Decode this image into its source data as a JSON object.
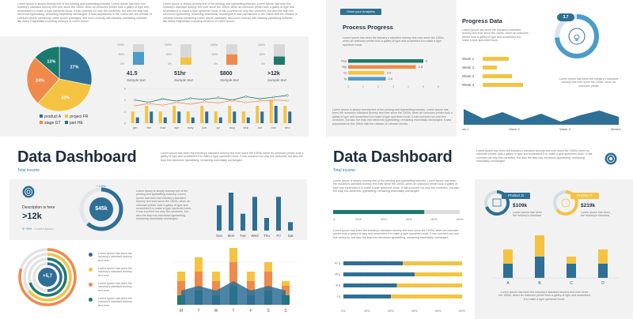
{
  "colors": {
    "navy": "#2e6f95",
    "teal": "#1b7a6e",
    "orange": "#f08a4b",
    "yellow": "#f5c342",
    "light_blue": "#4a9cc9",
    "grey_panel": "#f2f2f2"
  },
  "s1": {
    "para1": "Lorem Ipsum is simply dummy text of the printing and typesetting industry. Lorem Ipsum has been the industry's standard dummy text ever since the 1500s, when an unknown printer took a galley of type and scrambled it to make a type specimen book. It has survived not only five centuries, but also the leap into electronic typesetting, remaining essentially unchanged. It was popularised in the 1960s with the release of Letraset sheets containing Lorem Ipsum passages, and more recently with desktop publishing software like Aldus PageMaker including versions of Lorem Ipsum.",
    "para2": "Lorem Ipsum is simply dummy text of the printing and typesetting industry. Lorem Ipsum has been the industry's standard dummy text ever since the 1500s, when an unknown printer took a galley of type and scrambled it to make a type specimen book. It has survived not only five centuries, but also the leap into electronic typesetting, remaining essentially unchanged. It was popularised in the 1960s with the release of Letraset sheets containing Lorem Ipsum passages, and more recently with desktop publishing software like Aldus PageMaker including versions of Lorem Ipsum.",
    "pie": {
      "values": [
        27,
        32,
        24,
        13
      ],
      "labels": [
        "27%",
        "32%",
        "24%",
        "13%"
      ]
    },
    "legend": [
      "product A",
      "project FR",
      "stage GT",
      "part HE"
    ],
    "kpis": [
      {
        "value": "41.5",
        "label": "Sample text",
        "fill": 0.62
      },
      {
        "value": "51hr",
        "label": "Sample text",
        "fill": 0.35
      },
      {
        "value": "$800",
        "label": "Sample text",
        "fill": 0.5
      },
      {
        "value": ">12k",
        "label": "Sample text",
        "fill": 0.4
      }
    ],
    "kpi_axis": [
      "100%",
      "50%",
      "0%"
    ],
    "combo": {
      "months": [
        "jan",
        "feb",
        "mar",
        "apr",
        "may",
        "jun",
        "jul",
        "aug",
        "sep",
        "oct",
        "nov",
        "dec"
      ],
      "bars1": [
        2,
        3,
        2,
        3,
        2,
        3,
        2,
        3,
        2,
        3,
        4,
        3
      ],
      "bars2": [
        1,
        2,
        1,
        2,
        1,
        2,
        1,
        2,
        1,
        2,
        3,
        2
      ],
      "line1": [
        4,
        3.6,
        4.2,
        3.8,
        4.3,
        4.1,
        4.4,
        4,
        4.6,
        4.2,
        4.5,
        4.8
      ],
      "line2": [
        3,
        3.4,
        3.1,
        3.6,
        3.3,
        3.7,
        3.5,
        3.9,
        3.6,
        3.8,
        4,
        3.9
      ],
      "yticks": [
        "6",
        "4",
        "2",
        "0"
      ]
    }
  },
  "s2": {
    "button": "Show your Analytics",
    "title": "Process Progress",
    "para": "Lorem Ipsum has been the industry's standard dummy text ever since the 1500s, when an unknown printer took a galley of type and scrambled it to make a type specimen book.",
    "bars": [
      {
        "label": "Fey",
        "value": "5"
      },
      {
        "label": "Ely",
        "value": "4.5"
      },
      {
        "label": "Ty",
        "value": "2.4"
      },
      {
        "label": "Iy",
        "value": "2.5"
      }
    ],
    "axis": [
      "0",
      "1",
      "2",
      "3",
      "4",
      "5",
      "6"
    ],
    "bottom_para": "Lorem Ipsum is simply dummy text of the printing and typesetting industry. Lorem Ipsum has been the industry's standard dummy text ever since the 1500s, when an unknown printer took a galley of type and scrambled it to make a type specimen book. It has survived not only five centuries, but also the leap into electronic typesetting, remaining essentially unchanged. It was popularised in the 1960s with the release of Letraset sheets.",
    "right_title": "Progress Data",
    "right_para": "Lorem Ipsum has been the industry's standard dummy text ever since the 1500s, when an unknown printer took a galley of type and scrambled it to make a type specimen book.",
    "weeks": [
      {
        "label": "Week 1",
        "value": 0.55
      },
      {
        "label": "Week 2",
        "value": 0.3
      },
      {
        "label": "Week 3",
        "value": 0.62
      },
      {
        "label": "Week 4",
        "value": 0.85
      }
    ],
    "ring_value": "3.7",
    "ring_para": "Lorem Ipsum has been the industry's standard dummy text ever since the 1500s, when an unknown printer",
    "area_x": [
      "Week 1",
      "Week 2",
      "Week 3",
      "Week4"
    ]
  },
  "s3": {
    "title": "Data Dashboard",
    "subtitle": "Total income",
    "side_text": "Lorem Ipsum has been the industry's standard dummy text ever since the 1500s, when an unknown printer took a galley of type and scrambled it to make a type specimen book. It has survived not only five centuries, but also the leap into electronic typesetting, remaining essentially unchanged.",
    "desc_label": "Description is here",
    "desc_value": ">12k",
    "trend": "+5%",
    "trend_label": "Lorem ipsum",
    "ring_pct": "+ 4.5%",
    "ring_value": "$45k",
    "ring_para": "Lorem Ipsum is simply dummy text of the printing and typesetting industry. Lorem Ipsum has been the industry's standard dummy text ever since the 1500s, when an unknown printer took a galley of type and scrambled it to make a type specimen book. It has survived not only five centuries, but also the leap into electronic typesetting, remaining essentially unchanged.",
    "days": [
      "Sun",
      "Mon",
      "Tue",
      "Wed",
      "Thu",
      "Fri",
      "Sat"
    ],
    "day_values": [
      6,
      9,
      4,
      8,
      3,
      8,
      2
    ],
    "rings_center": "+5,7",
    "rings_items": [
      "Lorem Ipsum has been the industry's standard dummy text ever.",
      "Lorem Ipsum has been the industry's standard dummy text ever.",
      "Lorem Ipsum has been the industry's standard dummy text ever.",
      "Lorem Ipsum has been the industry's standard dummy text ever."
    ],
    "stack_x": [
      "M",
      "T",
      "W",
      "T",
      "F",
      "S",
      "S"
    ],
    "stack_teal": [
      2,
      3,
      2,
      4,
      2,
      3,
      2
    ],
    "stack_orange": [
      3,
      4,
      3,
      5,
      3,
      4,
      2
    ],
    "stack_yellow": [
      2,
      3,
      2,
      3,
      2,
      2,
      1
    ]
  },
  "s4": {
    "title": "Data Dashboard",
    "subtitle": "Total income",
    "side_text": "Lorem Ipsum has been the industry's standard dummy text ever since the 1500s, when an unknown printer took a galley of type and scrambled it to make a type specimen book. It has survived not only five centuries, but also the leap into electronic typesetting, remaining essentially unchanged.",
    "para1": "Lorem Ipsum is simply dummy text of the printing and typesetting industry. Lorem Ipsum has been the industry's standard dummy text ever since the 1500s, when an unknown printer took a galley of type and scrambled it to make a type specimen book. It has survived not only five centuries, but also the leap into electronic typesetting, remaining essentially unchanged.",
    "progress": 0.72,
    "axis": [
      "0%",
      "20%",
      "40%",
      "60%",
      "80%",
      "100%"
    ],
    "para2": "Lorem Ipsum has been the industry's standard dummy text ever since the 1500s, when an unknown printer took a galley of type and scrambled it to make a type specimen book. It has survived not only five centuries, but also the leap into electronic typesetting, remaining essentially unchanged.",
    "stack_labels": [
      "IV q",
      "III q",
      "II q",
      "I q"
    ],
    "stack_values": [
      0.5,
      0.6,
      0.45,
      0.4
    ],
    "product_d": {
      "label": "Product D",
      "value": "$109k",
      "text": "Lorem Ipsum has been the industry's standard"
    },
    "product_e": {
      "label": "Product E",
      "value": "$219k",
      "text": "Lorem Ipsum has been the industry's standard"
    },
    "bar_x": [
      "A",
      "B",
      "C",
      "D"
    ],
    "bar_navy": [
      2,
      3,
      2,
      2
    ],
    "bar_yellow": [
      2,
      3,
      1,
      2
    ],
    "bottom_text": "Lorem Ipsum has been the industry's standard dummy text ever since the 1500s, when an unknown printer took a galley of type and scrambled it to make a type specimen book."
  }
}
